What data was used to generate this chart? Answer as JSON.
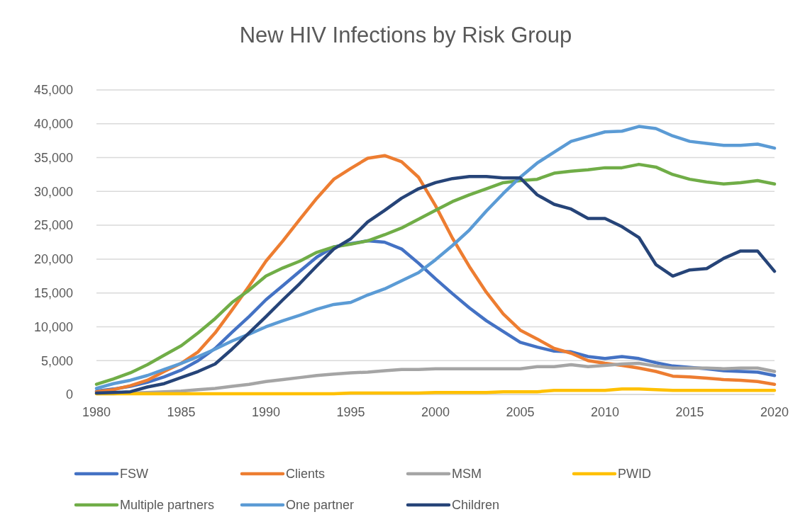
{
  "chart_data": {
    "type": "line",
    "title": "New HIV Infections by Risk Group",
    "x": [
      1980,
      1981,
      1982,
      1983,
      1984,
      1985,
      1986,
      1987,
      1988,
      1989,
      1990,
      1991,
      1992,
      1993,
      1994,
      1995,
      1996,
      1997,
      1998,
      1999,
      2000,
      2001,
      2002,
      2003,
      2004,
      2005,
      2006,
      2007,
      2008,
      2009,
      2010,
      2011,
      2012,
      2013,
      2014,
      2015,
      2016,
      2017,
      2018,
      2019,
      2020
    ],
    "xlim": [
      1980,
      2020
    ],
    "xticks": [
      1980,
      1985,
      1990,
      1995,
      2000,
      2005,
      2010,
      2015,
      2020
    ],
    "ylim": [
      0,
      45000
    ],
    "yticks": [
      0,
      {
        "value": 5000,
        "label": "5,000"
      },
      {
        "value": 10000,
        "label": "10,000"
      },
      {
        "value": 15000,
        "label": "15,000"
      },
      {
        "value": 20000,
        "label": "20,000"
      },
      {
        "value": 25000,
        "label": "25,000"
      },
      {
        "value": 30000,
        "label": "30,000"
      },
      {
        "value": 35000,
        "label": "35,000"
      },
      {
        "value": 40000,
        "label": "40,000"
      },
      {
        "value": 45000,
        "label": "45,000"
      }
    ],
    "grid": "y",
    "legend": "bottom",
    "series": [
      {
        "name": "FSW",
        "color": "#4472c4",
        "values": [
          500,
          800,
          1200,
          1800,
          2600,
          3600,
          5000,
          6800,
          9200,
          11500,
          14000,
          16100,
          18200,
          20300,
          21800,
          22300,
          22700,
          22500,
          21500,
          19400,
          17100,
          14900,
          12800,
          10900,
          9300,
          7700,
          7000,
          6400,
          6300,
          5600,
          5300,
          5600,
          5300,
          4700,
          4200,
          4000,
          3800,
          3500,
          3400,
          3300,
          2800
        ]
      },
      {
        "name": "Clients",
        "color": "#ed7d31",
        "values": [
          400,
          700,
          1300,
          2100,
          3400,
          4600,
          6300,
          9100,
          12500,
          16000,
          19700,
          22700,
          25900,
          29000,
          31800,
          33400,
          34900,
          35300,
          34400,
          32100,
          27900,
          23100,
          18900,
          15100,
          11900,
          9500,
          8200,
          6800,
          6100,
          5000,
          4600,
          4300,
          3900,
          3400,
          2700,
          2600,
          2400,
          2200,
          2100,
          1900,
          1500
        ]
      },
      {
        "name": "MSM",
        "color": "#a5a5a5",
        "values": [
          100,
          100,
          200,
          300,
          400,
          500,
          700,
          900,
          1200,
          1500,
          1900,
          2200,
          2500,
          2800,
          3000,
          3200,
          3300,
          3500,
          3700,
          3700,
          3800,
          3800,
          3800,
          3800,
          3800,
          3800,
          4100,
          4100,
          4400,
          4100,
          4300,
          4500,
          4600,
          4200,
          3900,
          3900,
          3900,
          3800,
          3900,
          3900,
          3400
        ]
      },
      {
        "name": "PWID",
        "color": "#ffc000",
        "values": [
          100,
          100,
          100,
          100,
          100,
          100,
          100,
          100,
          100,
          100,
          100,
          100,
          100,
          100,
          100,
          200,
          200,
          200,
          200,
          200,
          300,
          300,
          300,
          300,
          400,
          400,
          400,
          600,
          600,
          600,
          600,
          800,
          800,
          700,
          600,
          600,
          600,
          600,
          600,
          600,
          600
        ]
      },
      {
        "name": "Multiple partners",
        "color": "#70ad47",
        "values": [
          1500,
          2300,
          3200,
          4400,
          5800,
          7200,
          9100,
          11200,
          13600,
          15400,
          17500,
          18700,
          19700,
          21000,
          21800,
          22200,
          22700,
          23600,
          24600,
          25900,
          27200,
          28500,
          29500,
          30400,
          31300,
          31600,
          31800,
          32700,
          33000,
          33200,
          33500,
          33500,
          34000,
          33600,
          32500,
          31800,
          31400,
          31100,
          31300,
          31600,
          31100
        ]
      },
      {
        "name": "One partner",
        "color": "#5b9bd5",
        "values": [
          900,
          1600,
          2100,
          2800,
          3700,
          4600,
          5600,
          6700,
          7900,
          8900,
          10000,
          10900,
          11700,
          12600,
          13300,
          13600,
          14700,
          15600,
          16800,
          18000,
          19900,
          22000,
          24300,
          27100,
          29700,
          32100,
          34200,
          35800,
          37400,
          38100,
          38800,
          38900,
          39600,
          39300,
          38200,
          37400,
          37100,
          36800,
          36800,
          37000,
          36400
        ]
      },
      {
        "name": "Children",
        "color": "#264478",
        "values": [
          200,
          300,
          400,
          1100,
          1600,
          2500,
          3400,
          4500,
          6700,
          9100,
          11500,
          14000,
          16400,
          19000,
          21500,
          23000,
          25500,
          27200,
          29000,
          30400,
          31300,
          31900,
          32200,
          32200,
          32000,
          32000,
          29500,
          28100,
          27400,
          26000,
          26000,
          24800,
          23200,
          19200,
          17500,
          18400,
          18600,
          20100,
          21200,
          21200,
          18200
        ]
      }
    ]
  }
}
